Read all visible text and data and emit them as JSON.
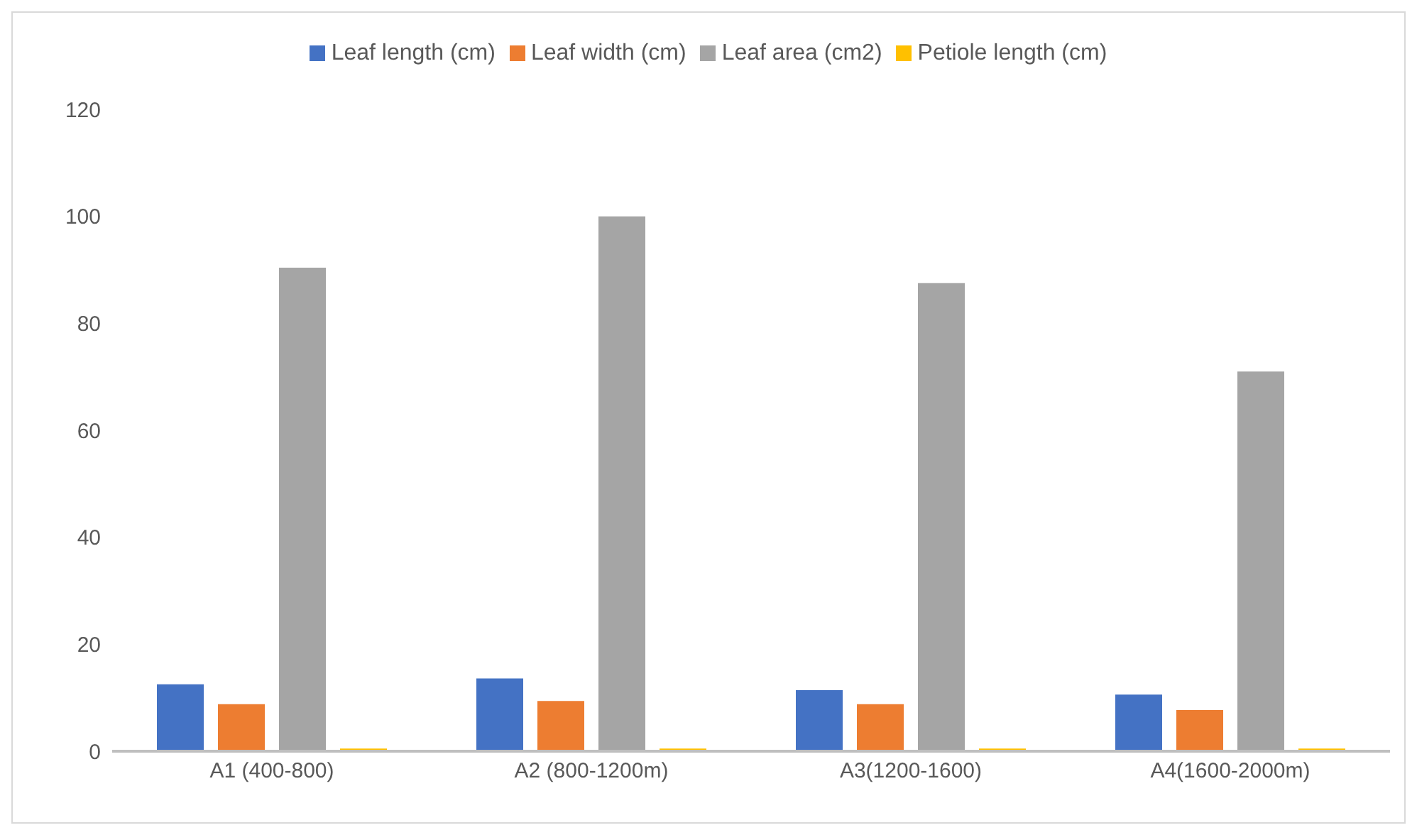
{
  "chart_data": {
    "type": "bar",
    "categories": [
      "A1 (400-800)",
      "A2 (800-1200m)",
      "A3(1200-1600)",
      "A4(1600-2000m)"
    ],
    "series": [
      {
        "name": "Leaf length (cm)",
        "color": "#4472c4",
        "values": [
          12.5,
          13.6,
          11.4,
          10.6
        ]
      },
      {
        "name": "Leaf width (cm)",
        "color": "#ed7d31",
        "values": [
          8.8,
          9.4,
          8.8,
          7.7
        ]
      },
      {
        "name": "Leaf area (cm2)",
        "color": "#a5a5a5",
        "values": [
          90.4,
          100,
          87.5,
          71
        ]
      },
      {
        "name": "Petiole length (cm)",
        "color": "#ffc000",
        "values": [
          0.5,
          0.5,
          0.5,
          0.5
        ]
      }
    ],
    "ylim": [
      0,
      120
    ],
    "yticks": [
      0,
      20,
      40,
      60,
      80,
      100,
      120
    ],
    "grid": false,
    "legend": "top"
  }
}
